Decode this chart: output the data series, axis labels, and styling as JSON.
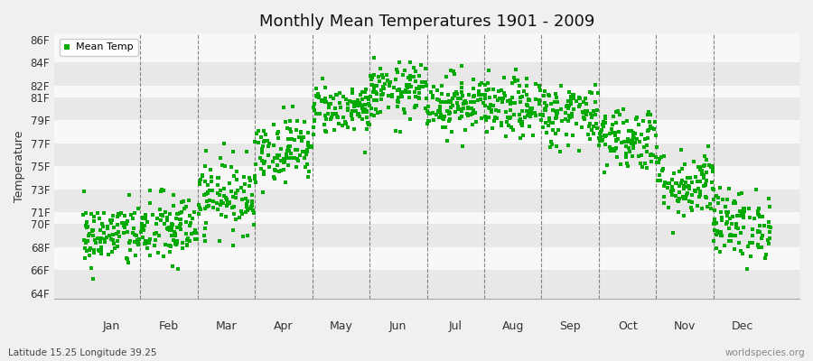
{
  "title": "Monthly Mean Temperatures 1901 - 2009",
  "ylabel": "Temperature",
  "xlabel_labels": [
    "Jan",
    "Feb",
    "Mar",
    "Apr",
    "May",
    "Jun",
    "Jul",
    "Aug",
    "Sep",
    "Oct",
    "Nov",
    "Dec"
  ],
  "ytick_labels": [
    "64F",
    "66F",
    "68F",
    "70F",
    "71F",
    "73F",
    "75F",
    "77F",
    "79F",
    "81F",
    "82F",
    "84F",
    "86F"
  ],
  "ytick_values": [
    64,
    66,
    68,
    70,
    71,
    73,
    75,
    77,
    79,
    81,
    82,
    84,
    86
  ],
  "ylim": [
    63.5,
    86.5
  ],
  "dot_color": "#00aa00",
  "dot_size": 5,
  "background_color": "#f0f0f0",
  "plot_bg_color": "#f0f0f0",
  "stripe_color_light": "#e8e8e8",
  "stripe_color_dark": "#f8f8f8",
  "subtitle_left": "Latitude 15.25 Longitude 39.25",
  "subtitle_right": "worldspecies.org",
  "legend_label": "Mean Temp",
  "num_years": 109,
  "monthly_means_f": [
    69.0,
    69.5,
    72.5,
    76.5,
    80.0,
    81.5,
    80.5,
    80.0,
    79.5,
    77.5,
    73.5,
    70.0
  ],
  "monthly_stds_f": [
    1.4,
    1.6,
    1.6,
    1.4,
    1.1,
    1.2,
    1.3,
    1.3,
    1.4,
    1.4,
    1.5,
    1.5
  ],
  "vline_color": "#555555",
  "xlim_start": -0.5,
  "xlim_end": 12.5
}
